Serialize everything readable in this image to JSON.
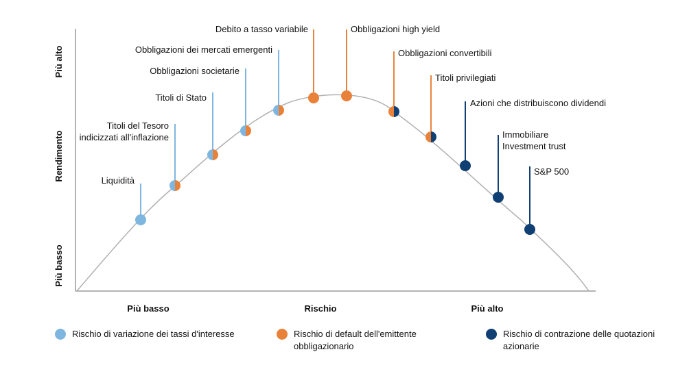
{
  "colors": {
    "interest_rate": "#7fb6df",
    "default": "#e8823a",
    "equity": "#0f3f73",
    "curve": "#b0b0b0",
    "axis": "#9a9a9a"
  },
  "axes": {
    "y_top": "Più alto",
    "y_mid": "Rendimento",
    "y_bottom": "Più basso",
    "x_left": "Più basso",
    "x_mid": "Rischio",
    "x_right": "Più alto"
  },
  "points": [
    {
      "lines": [
        "Liquidità"
      ],
      "left": "interest_rate",
      "right": "interest_rate",
      "stem": "interest_rate"
    },
    {
      "lines": [
        "Titoli del Tesoro",
        "indicizzati all'inflazione"
      ],
      "left": "interest_rate",
      "right": "default",
      "stem": "interest_rate"
    },
    {
      "lines": [
        "Titoli di Stato"
      ],
      "left": "interest_rate",
      "right": "default",
      "stem": "interest_rate"
    },
    {
      "lines": [
        "Obbligazioni societarie"
      ],
      "left": "interest_rate",
      "right": "default",
      "stem": "interest_rate"
    },
    {
      "lines": [
        "Obbligazioni dei mercati emergenti"
      ],
      "left": "interest_rate",
      "right": "default",
      "stem": "interest_rate"
    },
    {
      "lines": [
        "Debito a tasso variabile"
      ],
      "left": "default",
      "right": "default",
      "stem": "default"
    },
    {
      "lines": [
        "Obbligazioni high yield"
      ],
      "left": "default",
      "right": "default",
      "stem": "default"
    },
    {
      "lines": [
        "Obbligazioni convertibili"
      ],
      "left": "default",
      "right": "equity",
      "stem": "default"
    },
    {
      "lines": [
        "Titoli privilegiati"
      ],
      "left": "default",
      "right": "equity",
      "stem": "default"
    },
    {
      "lines": [
        "Azioni che distribuiscono dividendi"
      ],
      "left": "equity",
      "right": "equity",
      "stem": "equity"
    },
    {
      "lines": [
        "Immobiliare",
        "Investment trust"
      ],
      "left": "equity",
      "right": "equity",
      "stem": "equity"
    },
    {
      "lines": [
        "S&P 500"
      ],
      "left": "equity",
      "right": "equity",
      "stem": "equity"
    }
  ],
  "legend": [
    {
      "color": "interest_rate",
      "text": "Rischio di variazione dei tassi d'interesse"
    },
    {
      "color": "default",
      "text": "Rischio di default dell'emittente\nobbligazionario"
    },
    {
      "color": "equity",
      "text": "Rischio di contrazione delle quotazioni\nazionarie"
    }
  ]
}
